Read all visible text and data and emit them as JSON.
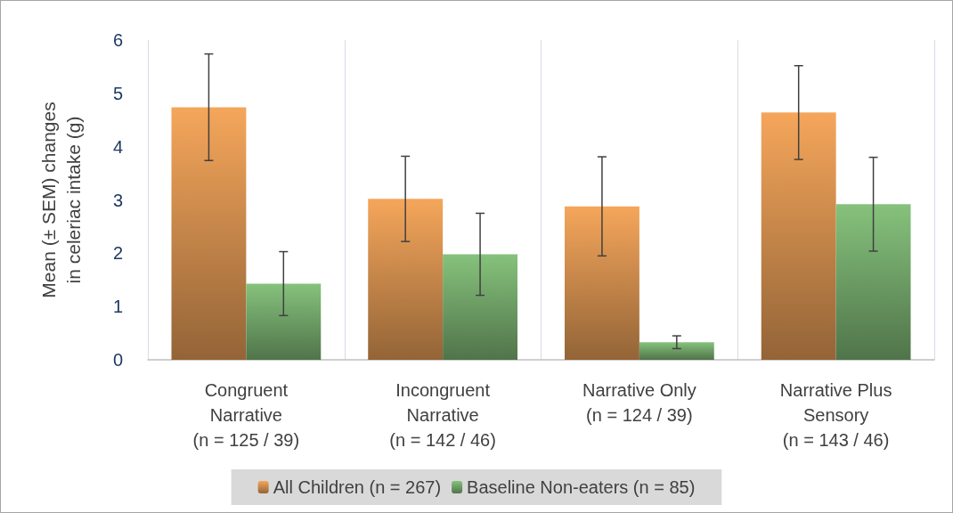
{
  "chart_data": {
    "type": "bar",
    "ylabel": "Mean (± SEM) changes\nin celeriac intake (g)",
    "categories": [
      "Congruent\nNarrative\n(n = 125 / 39)",
      "Incongruent\nNarrative\n(n = 142 / 46)",
      "Narrative Only\n(n = 124 / 39)",
      "Narrative Plus\nSensory\n(n = 143 / 46)"
    ],
    "series": [
      {
        "name": "All Children (n = 267)",
        "color": "#f5a65b",
        "values": [
          4.74,
          3.02,
          2.88,
          4.64
        ],
        "errors": [
          1.0,
          0.8,
          0.93,
          0.88
        ]
      },
      {
        "name": "Baseline Non-eaters (n = 85)",
        "color": "#86c27c",
        "values": [
          1.43,
          1.98,
          0.33,
          2.92
        ],
        "errors": [
          0.6,
          0.77,
          0.12,
          0.88
        ]
      }
    ],
    "ylim": [
      0,
      6
    ],
    "yticks": [
      0,
      1,
      2,
      3,
      4,
      5,
      6
    ],
    "grid": "x",
    "legend": "bottom"
  }
}
